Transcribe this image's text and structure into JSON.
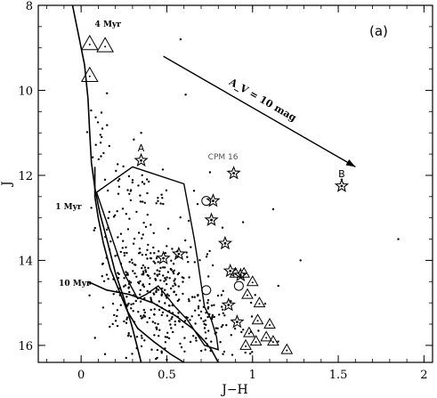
{
  "chart_data": {
    "type": "scatter",
    "title": "",
    "panel_label": "(a)",
    "xlabel": "J−H",
    "ylabel": "J",
    "xlim": [
      -0.25,
      2.05
    ],
    "ylim": [
      16.4,
      8.0
    ],
    "y_inverted": true,
    "x_ticks": [
      0,
      0.5,
      1,
      1.5,
      2
    ],
    "x_tick_labels": [
      "0",
      "0.5",
      "1",
      "1.5",
      "2"
    ],
    "y_ticks": [
      8,
      10,
      12,
      14,
      16
    ],
    "y_tick_labels": [
      "8",
      "10",
      "12",
      "14",
      "16"
    ],
    "grid": false,
    "isochrones": [
      {
        "label": "4 Myr",
        "label_pos": [
          0.08,
          8.5
        ],
        "points": [
          [
            -0.05,
            8.0
          ],
          [
            -0.02,
            8.6
          ],
          [
            0.02,
            9.4
          ],
          [
            0.04,
            10.2
          ],
          [
            0.05,
            11.0
          ],
          [
            0.06,
            11.7
          ],
          [
            0.08,
            12.3
          ],
          [
            0.11,
            12.9
          ],
          [
            0.15,
            13.5
          ],
          [
            0.2,
            14.3
          ],
          [
            0.25,
            14.9
          ],
          [
            0.3,
            15.6
          ],
          [
            0.35,
            16.4
          ]
        ]
      },
      {
        "label": "1 Myr",
        "label_pos": [
          -0.15,
          12.8
        ],
        "points": [
          [
            0.08,
            11.8
          ],
          [
            0.08,
            12.5
          ],
          [
            0.1,
            13.0
          ],
          [
            0.13,
            13.6
          ],
          [
            0.17,
            14.2
          ],
          [
            0.22,
            14.7
          ],
          [
            0.27,
            15.2
          ],
          [
            0.33,
            15.6
          ],
          [
            0.42,
            15.9
          ],
          [
            0.52,
            16.2
          ],
          [
            0.6,
            16.4
          ]
        ]
      },
      {
        "label": "10 Myr",
        "label_pos": [
          -0.13,
          14.6
        ],
        "points": [
          [
            0.04,
            14.5
          ],
          [
            0.15,
            14.7
          ],
          [
            0.28,
            14.8
          ],
          [
            0.42,
            15.0
          ],
          [
            0.55,
            15.3
          ],
          [
            0.65,
            15.6
          ],
          [
            0.72,
            15.9
          ],
          [
            0.76,
            16.1
          ],
          [
            0.8,
            16.4
          ]
        ]
      }
    ],
    "region_outline": [
      [
        0.09,
        12.4
      ],
      [
        0.3,
        11.8
      ],
      [
        0.6,
        12.2
      ],
      [
        0.66,
        13.5
      ],
      [
        0.68,
        14.0
      ],
      [
        0.72,
        15.1
      ],
      [
        0.76,
        15.4
      ],
      [
        0.79,
        15.8
      ],
      [
        0.8,
        16.1
      ],
      [
        0.72,
        16.0
      ],
      [
        0.62,
        15.4
      ],
      [
        0.55,
        15.1
      ],
      [
        0.45,
        14.6
      ],
      [
        0.38,
        14.8
      ],
      [
        0.33,
        14.9
      ],
      [
        0.25,
        14.3
      ]
    ],
    "reddening_vector": {
      "label": "A_V = 10 mag",
      "x": [
        0.48,
        1.6
      ],
      "y": [
        9.2,
        11.8
      ]
    },
    "triangle_sources": [
      {
        "x": 0.05,
        "y": 8.9
      },
      {
        "x": 0.14,
        "y": 8.95
      },
      {
        "x": 0.05,
        "y": 9.65
      },
      {
        "x": 0.9,
        "y": 14.3
      },
      {
        "x": 0.95,
        "y": 14.3
      },
      {
        "x": 1.0,
        "y": 14.5
      },
      {
        "x": 0.97,
        "y": 14.8
      },
      {
        "x": 1.04,
        "y": 15.0
      },
      {
        "x": 1.1,
        "y": 15.5
      },
      {
        "x": 1.03,
        "y": 15.4
      },
      {
        "x": 0.98,
        "y": 15.7
      },
      {
        "x": 1.08,
        "y": 15.8
      },
      {
        "x": 1.02,
        "y": 15.9
      },
      {
        "x": 0.96,
        "y": 16.0
      },
      {
        "x": 1.12,
        "y": 15.9
      },
      {
        "x": 1.2,
        "y": 16.1
      }
    ],
    "star_sources": [
      {
        "x": 0.35,
        "y": 11.65,
        "label": "A"
      },
      {
        "x": 0.89,
        "y": 11.95
      },
      {
        "x": 0.77,
        "y": 12.6
      },
      {
        "x": 0.76,
        "y": 13.05
      },
      {
        "x": 0.84,
        "y": 13.6
      },
      {
        "x": 0.48,
        "y": 13.95
      },
      {
        "x": 0.57,
        "y": 13.85
      },
      {
        "x": 0.87,
        "y": 14.25
      },
      {
        "x": 0.93,
        "y": 14.35
      },
      {
        "x": 0.86,
        "y": 15.05
      },
      {
        "x": 0.91,
        "y": 15.45
      },
      {
        "x": 1.52,
        "y": 12.25,
        "label": "B"
      }
    ],
    "circle_sources": [
      {
        "x": 0.73,
        "y": 12.6
      },
      {
        "x": 0.73,
        "y": 14.7
      },
      {
        "x": 0.92,
        "y": 14.6
      }
    ],
    "annotations": [
      {
        "text": "CPM 16",
        "x": 0.74,
        "y": 11.62
      }
    ]
  }
}
